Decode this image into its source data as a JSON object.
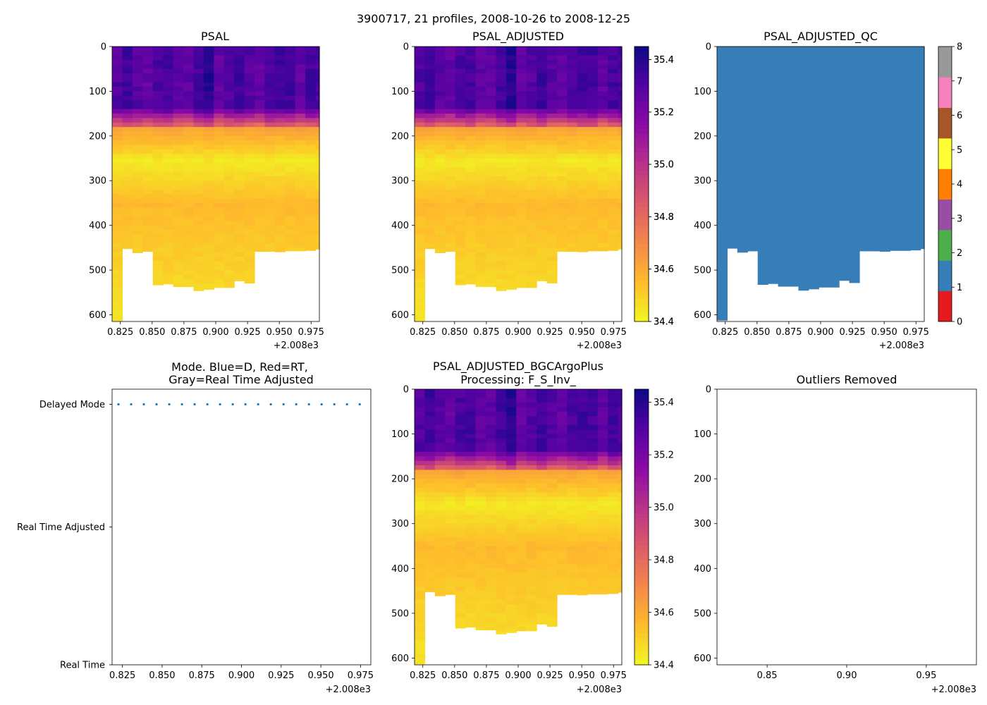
{
  "figure": {
    "suptitle": "3900717, 21 profiles, 2008-10-26 to 2008-12-25"
  },
  "chart_data": [
    {
      "type": "heatmap",
      "title": "PSAL",
      "x_offset_label": "+2.008e3",
      "xlim": [
        0.8185,
        0.9815
      ],
      "ylim": [
        615,
        0
      ],
      "x_ticks": [
        "0.825",
        "0.850",
        "0.875",
        "0.900",
        "0.925",
        "0.950",
        "0.975"
      ],
      "y_ticks": [
        "0",
        "100",
        "200",
        "300",
        "400",
        "500",
        "600"
      ],
      "colorbar": {
        "min": 34.4,
        "max": 35.45,
        "ticks": [
          "34.4",
          "34.6",
          "34.8",
          "35.0",
          "35.2",
          "35.4"
        ],
        "colormap": "plasma_r"
      },
      "profile_times": [
        0.8225,
        0.8305,
        0.8385,
        0.8465,
        0.8545,
        0.8625,
        0.8705,
        0.8785,
        0.8865,
        0.8945,
        0.9025,
        0.9105,
        0.9185,
        0.9265,
        0.9345,
        0.9425,
        0.9505,
        0.9585,
        0.9665,
        0.9745,
        0.9825
      ],
      "max_depth": [
        613,
        452,
        461,
        458,
        533,
        531,
        537,
        537,
        546,
        543,
        539,
        539,
        524,
        529,
        458,
        458,
        459,
        457,
        457,
        456,
        453
      ]
    },
    {
      "type": "heatmap",
      "title": "PSAL_ADJUSTED",
      "x_offset_label": "+2.008e3",
      "xlim": [
        0.8185,
        0.9815
      ],
      "ylim": [
        615,
        0
      ],
      "x_ticks": [
        "0.825",
        "0.850",
        "0.875",
        "0.900",
        "0.925",
        "0.950",
        "0.975"
      ],
      "y_ticks": [
        "0",
        "100",
        "200",
        "300",
        "400",
        "500",
        "600"
      ],
      "colorbar": {
        "min": 34.4,
        "max": 35.45,
        "ticks": [
          "34.4",
          "34.6",
          "34.8",
          "35.0",
          "35.2",
          "35.4"
        ],
        "colormap": "plasma_r"
      }
    },
    {
      "type": "heatmap",
      "title": "PSAL_ADJUSTED_QC",
      "x_offset_label": "+2.008e3",
      "xlim": [
        0.8185,
        0.9815
      ],
      "ylim": [
        615,
        0
      ],
      "x_ticks": [
        "0.825",
        "0.850",
        "0.875",
        "0.900",
        "0.925",
        "0.950",
        "0.975"
      ],
      "y_ticks": [
        "0",
        "100",
        "200",
        "300",
        "400",
        "500",
        "600"
      ],
      "qc_value": 1,
      "colorbar": {
        "min": 0,
        "max": 8,
        "ticks": [
          "0",
          "1",
          "2",
          "3",
          "4",
          "5",
          "6",
          "7",
          "8"
        ],
        "colors": [
          "#e41a1c",
          "#377eb8",
          "#4daf4a",
          "#984ea3",
          "#ff7f00",
          "#ffff33",
          "#a65628",
          "#f781bf",
          "#999999"
        ]
      }
    },
    {
      "type": "scatter",
      "title": "Mode. Blue=D, Red=RT,\nGray=Real Time Adjusted",
      "title_lines": [
        "Mode. Blue=D, Red=RT,",
        "Gray=Real Time Adjusted"
      ],
      "x_offset_label": "+2.008e3",
      "xlim": [
        0.8185,
        0.9815
      ],
      "x_ticks": [
        "0.825",
        "0.850",
        "0.875",
        "0.900",
        "0.925",
        "0.950",
        "0.975"
      ],
      "y_categories": [
        "Delayed Mode",
        "Real Time Adjusted",
        "Real Time"
      ],
      "point_color": "#1f77b4",
      "series": [
        {
          "name": "Delayed Mode",
          "x": [
            0.8225,
            0.8305,
            0.8385,
            0.8465,
            0.8545,
            0.8625,
            0.8705,
            0.8785,
            0.8865,
            0.8945,
            0.9025,
            0.9105,
            0.9185,
            0.9265,
            0.9345,
            0.9425,
            0.9505,
            0.9585,
            0.9665,
            0.9745,
            0.9825
          ],
          "y": "Delayed Mode"
        }
      ]
    },
    {
      "type": "heatmap",
      "title": "PSAL_ADJUSTED_BGCArgoPlus\nProcessing: F_S_Inv_",
      "title_lines": [
        "PSAL_ADJUSTED_BGCArgoPlus",
        "Processing: F_S_Inv_"
      ],
      "x_offset_label": "+2.008e3",
      "xlim": [
        0.8185,
        0.9815
      ],
      "ylim": [
        615,
        0
      ],
      "x_ticks": [
        "0.825",
        "0.850",
        "0.875",
        "0.900",
        "0.925",
        "0.950",
        "0.975"
      ],
      "y_ticks": [
        "0",
        "100",
        "200",
        "300",
        "400",
        "500",
        "600"
      ],
      "colorbar": {
        "min": 34.4,
        "max": 35.45,
        "ticks": [
          "34.4",
          "34.6",
          "34.8",
          "35.0",
          "35.2",
          "35.4"
        ],
        "colormap": "plasma_r"
      }
    },
    {
      "type": "scatter",
      "title": "Outliers Removed",
      "x_offset_label": "+2.008e3",
      "xlim": [
        0.8185,
        0.9815
      ],
      "ylim": [
        615,
        0
      ],
      "x_ticks": [
        "0.85",
        "0.90",
        "0.95"
      ],
      "y_ticks": [
        "0",
        "100",
        "200",
        "300",
        "400",
        "500",
        "600"
      ],
      "series": []
    }
  ]
}
